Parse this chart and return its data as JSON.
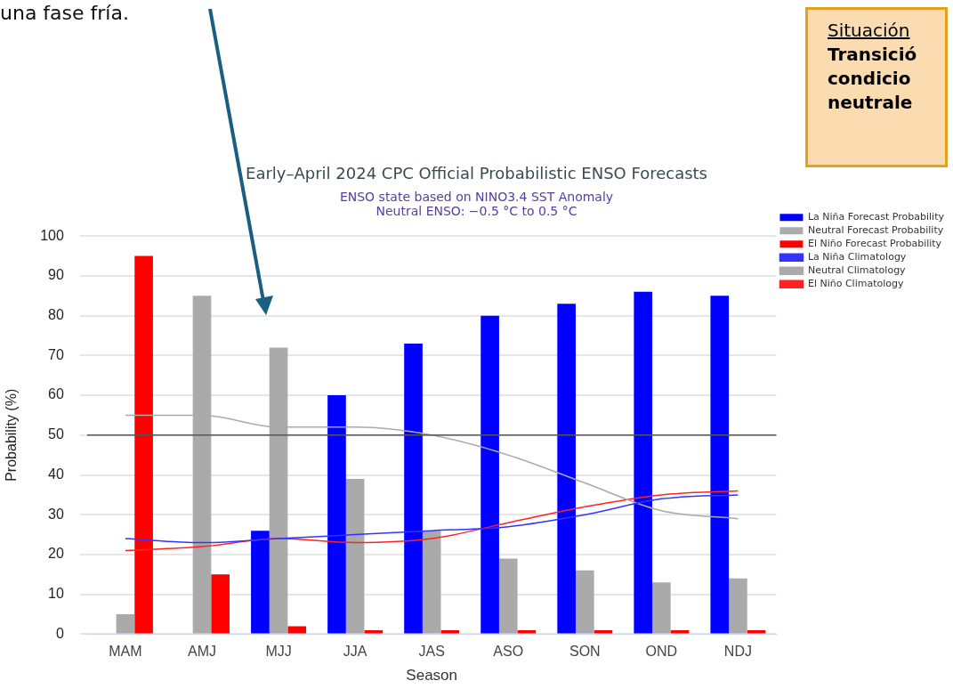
{
  "chart_data": {
    "type": "bar",
    "title": "Early–April 2024 CPC Official Probabilistic ENSO Forecasts",
    "subtitle": "ENSO state based on NINO3.4 SST Anomaly\nNeutral ENSO: −0.5 °C to 0.5 °C",
    "xlabel": "Season",
    "ylabel": "Probability (%)",
    "categories": [
      "MAM",
      "AMJ",
      "MJJ",
      "JJA",
      "JAS",
      "ASO",
      "SON",
      "OND",
      "NDJ"
    ],
    "series": [
      {
        "name": "La Niña Forecast Probability",
        "color": "#0000ff",
        "values": [
          0,
          0,
          26,
          60,
          73,
          80,
          83,
          86,
          85
        ]
      },
      {
        "name": "Neutral Forecast Probability",
        "color": "#aaaaaa",
        "values": [
          5,
          85,
          72,
          39,
          26,
          19,
          16,
          13,
          14
        ]
      },
      {
        "name": "El Niño Forecast Probability",
        "color": "#ff0000",
        "values": [
          95,
          15,
          2,
          1,
          1,
          1,
          1,
          1,
          1
        ]
      },
      {
        "name": "La Niña Climatology",
        "type": "line",
        "color": "#3333ff",
        "values": [
          24,
          23,
          24,
          25,
          26,
          27,
          30,
          34,
          35
        ]
      },
      {
        "name": "Neutral Climatology",
        "type": "line",
        "color": "#aaaaaa",
        "values": [
          55,
          55,
          52,
          52,
          50,
          45,
          38,
          31,
          29
        ]
      },
      {
        "name": "El Niño Climatology",
        "type": "line",
        "color": "#ff2222",
        "values": [
          21,
          22,
          24,
          23,
          24,
          28,
          32,
          35,
          36
        ]
      }
    ],
    "ylim": [
      0,
      100
    ],
    "yticks": [
      0,
      10,
      20,
      30,
      40,
      50,
      60,
      70,
      80,
      90,
      100
    ],
    "grid": "y",
    "legend": "top right",
    "marker": "none",
    "ref_lines": [
      {
        "axis": "y",
        "value": 50,
        "color": "#555555"
      }
    ],
    "annotations": [
      "una fase fría.",
      "Situación",
      "Transició",
      "condicio",
      "neutrale"
    ]
  }
}
